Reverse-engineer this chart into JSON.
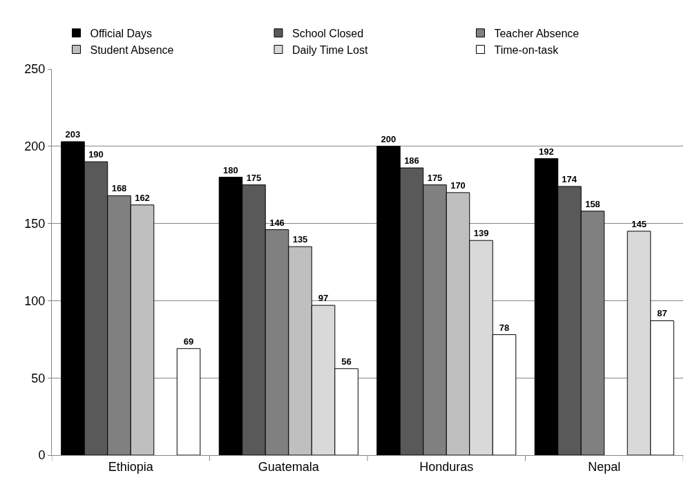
{
  "chart_data": {
    "type": "bar",
    "categories": [
      "Ethiopia",
      "Guatemala",
      "Honduras",
      "Nepal"
    ],
    "series": [
      {
        "name": "Official Days",
        "color": "#000000",
        "values": [
          203,
          180,
          200,
          192
        ]
      },
      {
        "name": "School Closed",
        "color": "#595959",
        "values": [
          190,
          175,
          186,
          174
        ]
      },
      {
        "name": "Teacher Absence",
        "color": "#808080",
        "values": [
          168,
          146,
          175,
          158
        ]
      },
      {
        "name": "Student Absence",
        "color": "#bfbfbf",
        "values": [
          162,
          135,
          170,
          null
        ]
      },
      {
        "name": "Daily Time Lost",
        "color": "#d9d9d9",
        "values": [
          null,
          97,
          139,
          145
        ]
      },
      {
        "name": "Time-on-task",
        "color": "#ffffff",
        "values": [
          69,
          56,
          78,
          87
        ]
      }
    ],
    "ylim": [
      0,
      250
    ],
    "yticks": [
      0,
      50,
      100,
      150,
      200,
      250
    ],
    "grid": "y",
    "legend": "top",
    "data_labels": true
  }
}
